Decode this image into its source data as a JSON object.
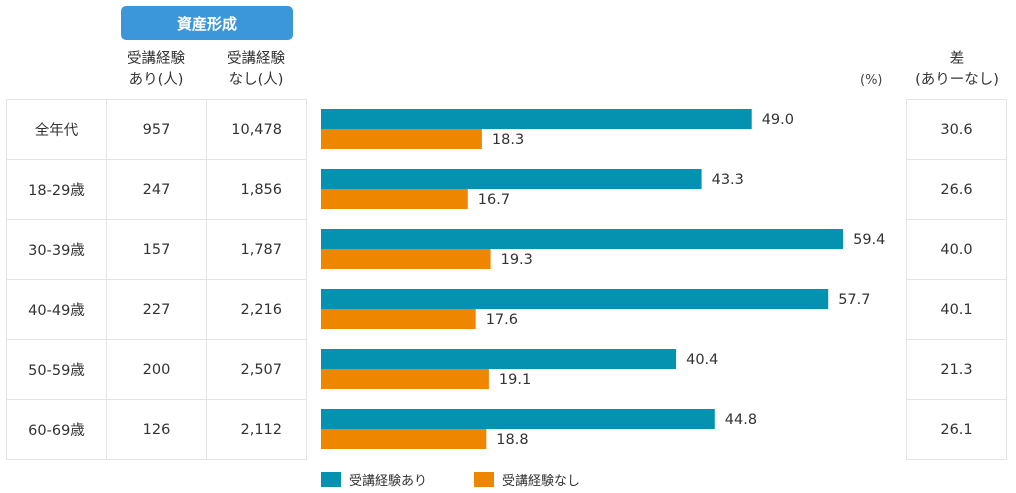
{
  "header": {
    "title": "資産形成",
    "accent": "#3B97D9"
  },
  "columns": {
    "with_count": [
      "受講経験",
      "あり(人)"
    ],
    "without_count": [
      "受講経験",
      "なし(人)"
    ],
    "unit": "(%)",
    "diff": [
      "差",
      "(ありーなし)"
    ]
  },
  "rows": [
    {
      "label": "全年代",
      "with_n": "957",
      "without_n": "10,478",
      "diff": "30.6"
    },
    {
      "label": "18-29歳",
      "with_n": "247",
      "without_n": "1,856",
      "diff": "26.6"
    },
    {
      "label": "30-39歳",
      "with_n": "157",
      "without_n": "1,787",
      "diff": "40.0"
    },
    {
      "label": "40-49歳",
      "with_n": "227",
      "without_n": "2,216",
      "diff": "40.1"
    },
    {
      "label": "50-59歳",
      "with_n": "200",
      "without_n": "2,507",
      "diff": "21.3"
    },
    {
      "label": "60-69歳",
      "with_n": "126",
      "without_n": "2,112",
      "diff": "26.1"
    }
  ],
  "chart_data": {
    "type": "bar",
    "orientation": "horizontal",
    "title": "資産形成",
    "ylabel": "(%)",
    "categories": [
      "全年代",
      "18-29歳",
      "30-39歳",
      "40-49歳",
      "50-59歳",
      "60-69歳"
    ],
    "series": [
      {
        "name": "受講経験あり",
        "color": "#0592B1",
        "values": [
          49.0,
          43.3,
          59.4,
          57.7,
          40.4,
          44.8
        ]
      },
      {
        "name": "受講経験なし",
        "color": "#EE8600",
        "values": [
          18.3,
          16.7,
          19.3,
          17.6,
          19.1,
          18.8
        ]
      }
    ],
    "xlim": [
      0,
      65
    ],
    "grid": false,
    "legend": "bottom"
  }
}
